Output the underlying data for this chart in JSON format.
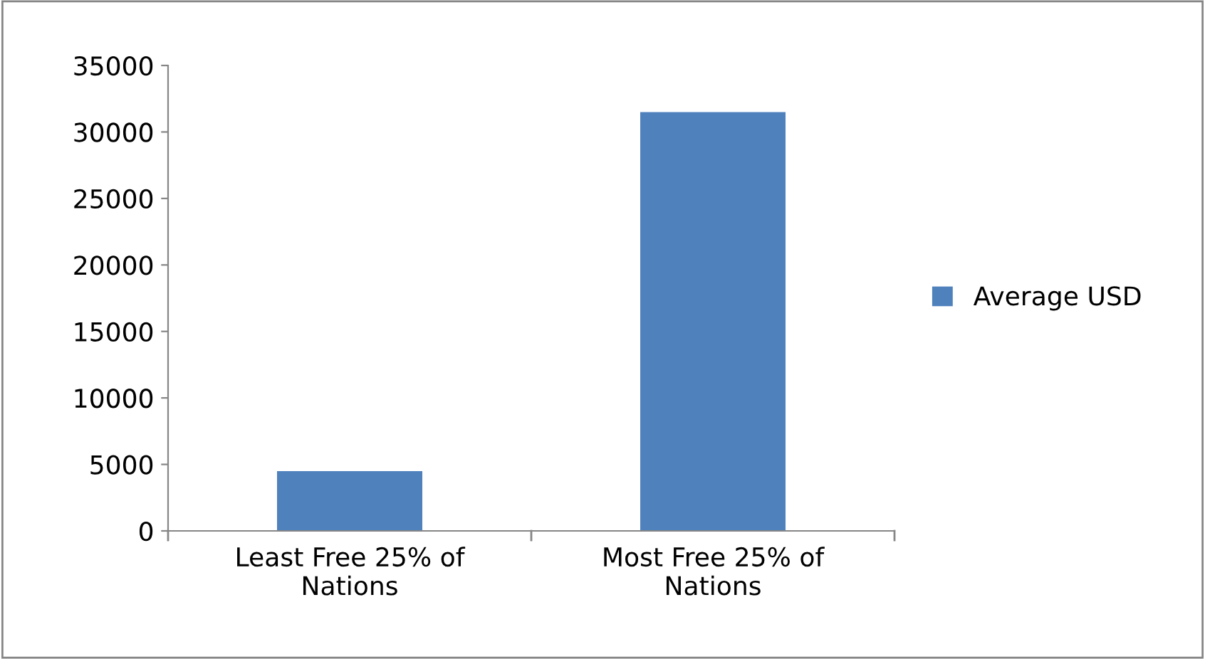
{
  "chart_data": {
    "type": "bar",
    "categories": [
      "Least Free 25% of\nNations",
      "Most Free 25% of\nNations"
    ],
    "series": [
      {
        "name": "Average USD",
        "color": "#4f81bd",
        "values": [
          4500,
          31500
        ]
      }
    ],
    "ylim": [
      0,
      35000
    ],
    "yticks": [
      0,
      5000,
      10000,
      15000,
      20000,
      25000,
      30000,
      35000
    ],
    "grid": false,
    "legend": "right"
  }
}
